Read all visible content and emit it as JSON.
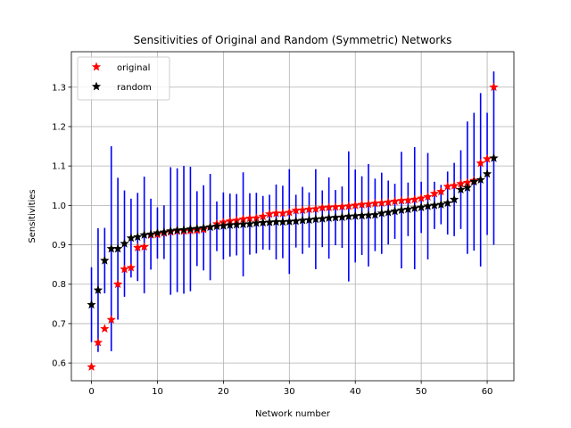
{
  "chart_data": {
    "type": "scatter",
    "title": "Sensitivities of Original and Random (Symmetric) Networks",
    "xlabel": "Network number",
    "ylabel": "Sensitivities",
    "xlim": [
      -3.05,
      64.05
    ],
    "ylim": [
      0.555,
      1.39
    ],
    "xticks": [
      0,
      10,
      20,
      30,
      40,
      50,
      60
    ],
    "yticks": [
      0.6,
      0.7,
      0.8,
      0.9,
      1.0,
      1.1,
      1.2,
      1.3
    ],
    "xtick_labels": [
      "0",
      "10",
      "20",
      "30",
      "40",
      "50",
      "60"
    ],
    "ytick_labels": [
      "0.6",
      "0.7",
      "0.8",
      "0.9",
      "1.0",
      "1.1",
      "1.2",
      "1.3"
    ],
    "grid": true,
    "legend_placement": "top-left",
    "legend": [
      {
        "label": "original",
        "color": "#ff0000"
      },
      {
        "label": "random",
        "color": "#000000"
      }
    ],
    "errorbar_color": "#0000ff",
    "series": [
      {
        "name": "original",
        "color": "#ff0000",
        "marker": "star",
        "x": [
          0,
          1,
          2,
          3,
          4,
          5,
          6,
          7,
          8,
          9,
          10,
          11,
          12,
          13,
          14,
          15,
          16,
          17,
          18,
          19,
          20,
          21,
          22,
          23,
          24,
          25,
          26,
          27,
          28,
          29,
          30,
          31,
          32,
          33,
          34,
          35,
          36,
          37,
          38,
          39,
          40,
          41,
          42,
          43,
          44,
          45,
          46,
          47,
          48,
          49,
          50,
          51,
          52,
          53,
          54,
          55,
          56,
          57,
          58,
          59,
          60,
          61
        ],
        "y": [
          0.59,
          0.652,
          0.687,
          0.71,
          0.8,
          0.838,
          0.842,
          0.893,
          0.895,
          0.925,
          0.926,
          0.93,
          0.933,
          0.935,
          0.935,
          0.936,
          0.937,
          0.939,
          0.945,
          0.953,
          0.957,
          0.96,
          0.962,
          0.965,
          0.967,
          0.968,
          0.972,
          0.978,
          0.98,
          0.98,
          0.982,
          0.987,
          0.988,
          0.99,
          0.991,
          0.994,
          0.995,
          0.996,
          0.997,
          0.998,
          1.0,
          1.002,
          1.003,
          1.005,
          1.006,
          1.008,
          1.01,
          1.012,
          1.013,
          1.015,
          1.018,
          1.022,
          1.03,
          1.035,
          1.048,
          1.05,
          1.055,
          1.058,
          1.063,
          1.107,
          1.118,
          1.3
        ]
      },
      {
        "name": "random",
        "color": "#000000",
        "marker": "star",
        "x": [
          0,
          1,
          2,
          3,
          4,
          5,
          6,
          7,
          8,
          9,
          10,
          11,
          12,
          13,
          14,
          15,
          16,
          17,
          18,
          19,
          20,
          21,
          22,
          23,
          24,
          25,
          26,
          27,
          28,
          29,
          30,
          31,
          32,
          33,
          34,
          35,
          36,
          37,
          38,
          39,
          40,
          41,
          42,
          43,
          44,
          45,
          46,
          47,
          48,
          49,
          50,
          51,
          52,
          53,
          54,
          55,
          56,
          57,
          58,
          59,
          60,
          61
        ],
        "y": [
          0.748,
          0.785,
          0.86,
          0.89,
          0.89,
          0.903,
          0.917,
          0.92,
          0.925,
          0.927,
          0.93,
          0.932,
          0.935,
          0.937,
          0.938,
          0.94,
          0.941,
          0.943,
          0.945,
          0.947,
          0.948,
          0.95,
          0.951,
          0.952,
          0.953,
          0.955,
          0.956,
          0.957,
          0.958,
          0.958,
          0.959,
          0.96,
          0.962,
          0.963,
          0.965,
          0.966,
          0.968,
          0.969,
          0.97,
          0.972,
          0.973,
          0.974,
          0.975,
          0.976,
          0.98,
          0.982,
          0.985,
          0.988,
          0.99,
          0.993,
          0.995,
          0.998,
          1.0,
          1.002,
          1.006,
          1.015,
          1.04,
          1.045,
          1.06,
          1.065,
          1.08,
          1.12
        ]
      }
    ],
    "errorbars": {
      "x": [
        0,
        1,
        2,
        3,
        4,
        5,
        6,
        7,
        8,
        9,
        10,
        11,
        12,
        13,
        14,
        15,
        16,
        17,
        18,
        19,
        20,
        21,
        22,
        23,
        24,
        25,
        26,
        27,
        28,
        29,
        30,
        31,
        32,
        33,
        34,
        35,
        36,
        37,
        38,
        39,
        40,
        41,
        42,
        43,
        44,
        45,
        46,
        47,
        48,
        49,
        50,
        51,
        52,
        53,
        54,
        55,
        56,
        57,
        58,
        59,
        60,
        61
      ],
      "center": [
        0.748,
        0.785,
        0.86,
        0.89,
        0.89,
        0.903,
        0.917,
        0.92,
        0.925,
        0.927,
        0.93,
        0.932,
        0.935,
        0.937,
        0.938,
        0.94,
        0.941,
        0.943,
        0.945,
        0.947,
        0.948,
        0.95,
        0.951,
        0.952,
        0.953,
        0.955,
        0.956,
        0.957,
        0.958,
        0.958,
        0.959,
        0.96,
        0.962,
        0.963,
        0.965,
        0.966,
        0.968,
        0.969,
        0.97,
        0.972,
        0.973,
        0.974,
        0.975,
        0.976,
        0.98,
        0.982,
        0.985,
        0.988,
        0.99,
        0.993,
        0.995,
        0.998,
        1.0,
        1.002,
        1.006,
        1.015,
        1.04,
        1.045,
        1.06,
        1.065,
        1.08,
        1.12
      ],
      "err": [
        0.095,
        0.157,
        0.083,
        0.26,
        0.18,
        0.135,
        0.1,
        0.112,
        0.148,
        0.09,
        0.065,
        0.068,
        0.162,
        0.157,
        0.162,
        0.158,
        0.095,
        0.108,
        0.135,
        0.063,
        0.085,
        0.08,
        0.078,
        0.132,
        0.078,
        0.077,
        0.068,
        0.07,
        0.095,
        0.092,
        0.133,
        0.067,
        0.085,
        0.07,
        0.127,
        0.072,
        0.103,
        0.07,
        0.078,
        0.165,
        0.118,
        0.1,
        0.13,
        0.092,
        0.103,
        0.081,
        0.07,
        0.148,
        0.068,
        0.155,
        0.065,
        0.135,
        0.06,
        0.05,
        0.08,
        0.093,
        0.1,
        0.168,
        0.175,
        0.22,
        0.155,
        0.22
      ]
    }
  }
}
